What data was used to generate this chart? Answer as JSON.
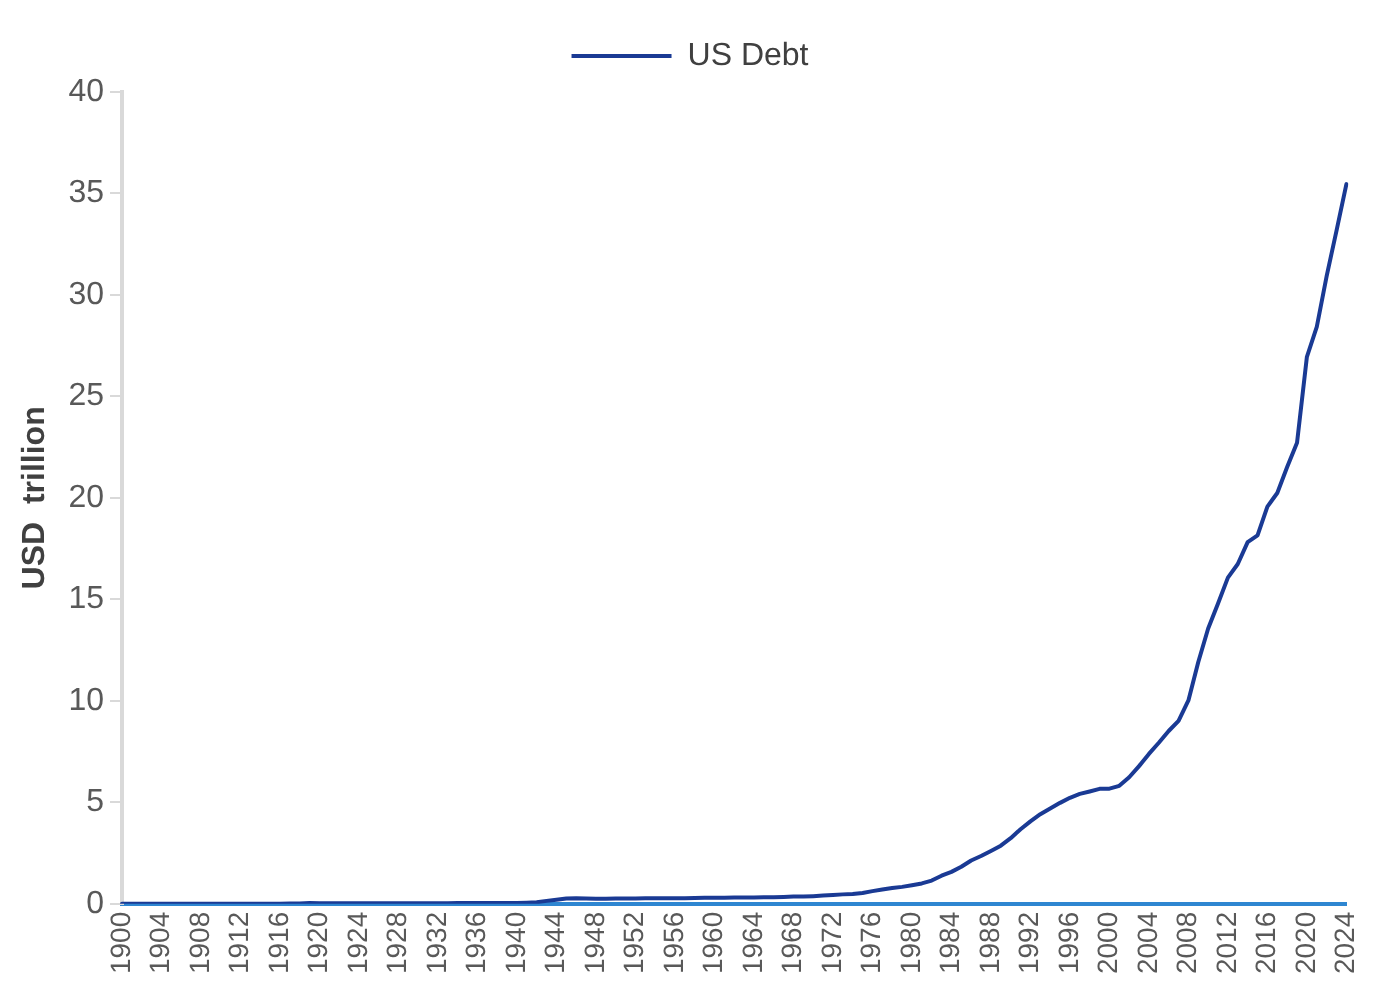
{
  "chart_data": {
    "type": "line",
    "ylabel": "USD  trillion",
    "categories": [
      "1900",
      null,
      null,
      null,
      "1904",
      null,
      null,
      null,
      "1908",
      null,
      null,
      null,
      "1912",
      null,
      null,
      null,
      "1916",
      null,
      null,
      null,
      "1920",
      null,
      null,
      null,
      "1924",
      null,
      null,
      null,
      "1928",
      null,
      null,
      null,
      "1932",
      null,
      null,
      null,
      "1936",
      null,
      null,
      null,
      "1940",
      null,
      null,
      null,
      "1944",
      null,
      null,
      null,
      "1948",
      null,
      null,
      null,
      "1952",
      null,
      null,
      null,
      "1956",
      null,
      null,
      null,
      "1960",
      null,
      null,
      null,
      "1964",
      null,
      null,
      null,
      "1968",
      null,
      null,
      null,
      "1972",
      null,
      null,
      null,
      "1976",
      null,
      null,
      null,
      "1980",
      null,
      null,
      null,
      "1984",
      null,
      null,
      null,
      "1988",
      null,
      null,
      null,
      "1992",
      null,
      null,
      null,
      "1996",
      null,
      null,
      null,
      "2000",
      null,
      null,
      null,
      "2004",
      null,
      null,
      null,
      "2008",
      null,
      null,
      null,
      "2012",
      null,
      null,
      null,
      "2016",
      null,
      null,
      null,
      "2020",
      null,
      null,
      null,
      "2024"
    ],
    "series": [
      {
        "name": "US Debt",
        "color": "#1a3a94",
        "values": [
          0,
          0,
          0,
          0,
          0,
          0,
          0,
          0,
          0,
          0,
          0,
          0,
          0,
          0,
          0,
          0,
          0,
          0.01,
          0.01,
          0.03,
          0.02,
          0.02,
          0.02,
          0.02,
          0.02,
          0.02,
          0.02,
          0.02,
          0.02,
          0.02,
          0.02,
          0.02,
          0.02,
          0.02,
          0.03,
          0.03,
          0.03,
          0.04,
          0.04,
          0.04,
          0.04,
          0.05,
          0.07,
          0.14,
          0.2,
          0.26,
          0.27,
          0.26,
          0.25,
          0.25,
          0.26,
          0.26,
          0.26,
          0.27,
          0.27,
          0.27,
          0.27,
          0.27,
          0.28,
          0.29,
          0.29,
          0.29,
          0.3,
          0.31,
          0.31,
          0.32,
          0.32,
          0.33,
          0.35,
          0.35,
          0.37,
          0.4,
          0.43,
          0.46,
          0.48,
          0.53,
          0.62,
          0.7,
          0.77,
          0.83,
          0.91,
          1,
          1.14,
          1.38,
          1.57,
          1.82,
          2.13,
          2.35,
          2.6,
          2.86,
          3.23,
          3.67,
          4.06,
          4.41,
          4.69,
          4.97,
          5.22,
          5.41,
          5.53,
          5.66,
          5.67,
          5.81,
          6.23,
          6.78,
          7.38,
          7.93,
          8.51,
          9.01,
          10.02,
          11.91,
          13.56,
          14.79,
          16.07,
          16.74,
          17.82,
          18.15,
          19.57,
          20.24,
          21.52,
          22.72,
          26.95,
          28.43,
          30.93,
          33.17,
          35.46
        ]
      }
    ],
    "ylim": [
      0,
      40
    ],
    "yticks": [
      0,
      5,
      10,
      15,
      20,
      25,
      30,
      35,
      40
    ],
    "grid": false,
    "legend": "top",
    "marker": "none",
    "line_style": "solid"
  }
}
